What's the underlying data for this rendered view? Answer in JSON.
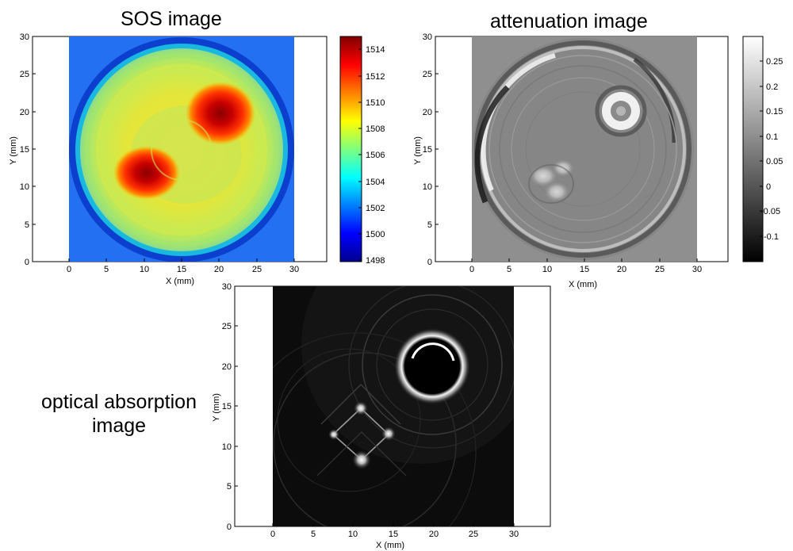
{
  "panels": [
    {
      "id": "sos",
      "title": "SOS image",
      "xlabel": "X (mm)",
      "ylabel": "Y (mm)",
      "xticks": [
        "0",
        "5",
        "10",
        "15",
        "20",
        "25",
        "30"
      ],
      "yticks": [
        "0",
        "5",
        "10",
        "15",
        "20",
        "25",
        "30"
      ],
      "colorbar_ticks": [
        "1514",
        "1512",
        "1510",
        "1508",
        "1506",
        "1504",
        "1502",
        "1500",
        "1498"
      ],
      "colorbar_values": [
        1514,
        1512,
        1510,
        1508,
        1506,
        1504,
        1502,
        1500,
        1498
      ],
      "colorbar_range": [
        1497.5,
        1515
      ],
      "colormap": "jet"
    },
    {
      "id": "attenuation",
      "title": "attenuation image",
      "xlabel": "X (mm)",
      "ylabel": "Y (mm)",
      "xticks": [
        "0",
        "5",
        "10",
        "15",
        "20",
        "25",
        "30"
      ],
      "yticks": [
        "0",
        "5",
        "10",
        "15",
        "20",
        "25",
        "30"
      ],
      "colorbar_ticks": [
        "0.25",
        "0.2",
        "0.15",
        "0.1",
        "0.05",
        "0",
        "-0.05",
        "-0.1"
      ],
      "colorbar_values": [
        0.25,
        0.2,
        0.15,
        0.1,
        0.05,
        0,
        -0.05,
        -0.1
      ],
      "colorbar_range": [
        -0.15,
        0.3
      ],
      "colormap": "gray"
    },
    {
      "id": "optical",
      "title": "optical absorption image",
      "xlabel": "X (mm)",
      "ylabel": "Y (mm)",
      "xticks": [
        "0",
        "5",
        "10",
        "15",
        "20",
        "25",
        "30"
      ],
      "yticks": [
        "0",
        "5",
        "10",
        "15",
        "20",
        "25",
        "30"
      ],
      "colormap": "gray"
    }
  ]
}
